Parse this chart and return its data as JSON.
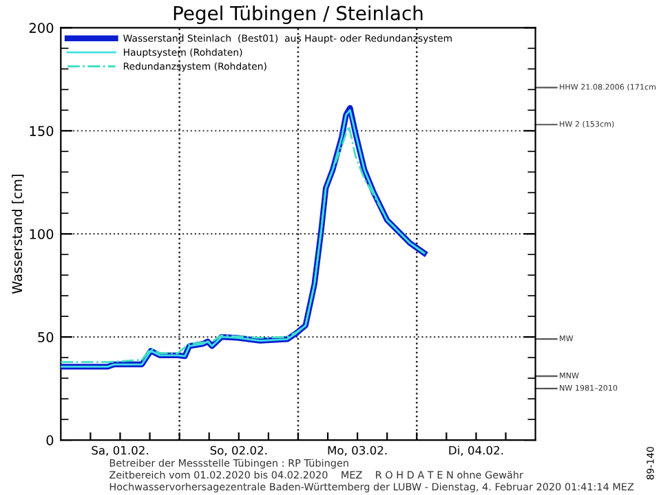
{
  "chart_data": {
    "type": "line",
    "title": "Pegel Tübingen / Steinlach",
    "ylabel": "Wasserstand [cm]",
    "xlim": [
      "2020-02-01T00:00",
      "2020-02-05T00:00"
    ],
    "ylim": [
      0,
      200
    ],
    "yticks": [
      0,
      50,
      100,
      150,
      200
    ],
    "xticks": [
      {
        "value": "2020-02-01T06:00",
        "label": null
      },
      {
        "value": "2020-02-01T12:00",
        "label": "Sa, 01.02."
      },
      {
        "value": "2020-02-01T18:00",
        "label": null
      },
      {
        "value": "2020-02-02T00:00",
        "label": null
      },
      {
        "value": "2020-02-02T06:00",
        "label": null
      },
      {
        "value": "2020-02-02T12:00",
        "label": "So, 02.02."
      },
      {
        "value": "2020-02-02T18:00",
        "label": null
      },
      {
        "value": "2020-02-03T00:00",
        "label": null
      },
      {
        "value": "2020-02-03T06:00",
        "label": null
      },
      {
        "value": "2020-02-03T12:00",
        "label": "Mo, 03.02."
      },
      {
        "value": "2020-02-03T18:00",
        "label": null
      },
      {
        "value": "2020-02-04T00:00",
        "label": null
      },
      {
        "value": "2020-02-04T06:00",
        "label": null
      },
      {
        "value": "2020-02-04T12:00",
        "label": "Di, 04.02."
      },
      {
        "value": "2020-02-04T18:00",
        "label": null
      }
    ],
    "grid": "y",
    "legend": "top left",
    "series": [
      {
        "name": "Wasserstand Steinlach  (Best01)  aus Haupt- oder Redundanzsystem",
        "color": "#0a1ed2",
        "line_style": "solid",
        "x": [
          "2020-02-01T00:00",
          "2020-02-01T09:30",
          "2020-02-01T10:48",
          "2020-02-01T16:24",
          "2020-02-01T18:12",
          "2020-02-01T20:00",
          "2020-02-01T23:42",
          "2020-02-02T01:06",
          "2020-02-02T02:00",
          "2020-02-02T04:48",
          "2020-02-02T05:42",
          "2020-02-02T06:36",
          "2020-02-02T08:30",
          "2020-02-02T11:42",
          "2020-02-02T16:18",
          "2020-02-02T21:48",
          "2020-02-02T23:36",
          "2020-02-03T01:30",
          "2020-02-03T03:18",
          "2020-02-03T04:42",
          "2020-02-03T05:36",
          "2020-02-03T07:00",
          "2020-02-03T08:48",
          "2020-02-03T09:42",
          "2020-02-03T10:30",
          "2020-02-03T11:36",
          "2020-02-03T12:30",
          "2020-02-03T13:24",
          "2020-02-03T15:18",
          "2020-02-03T18:00",
          "2020-02-03T22:36",
          "2020-02-04T01:30"
        ],
        "values": [
          35.6,
          35.6,
          36.7,
          36.7,
          43.3,
          41.1,
          41.1,
          40.7,
          45.6,
          46.7,
          47.8,
          45.6,
          50,
          49.6,
          48.2,
          48.9,
          51.8,
          55.6,
          75.6,
          102.2,
          122.2,
          131.1,
          146.7,
          157.8,
          161.1,
          148.9,
          140,
          131.1,
          120,
          106.7,
          95.6,
          90.7
        ]
      },
      {
        "name": "Hauptsystem (Rohdaten)",
        "color": "#40e0e0",
        "line_style": "solid",
        "x": [
          "2020-02-01T00:00",
          "2020-02-01T09:30",
          "2020-02-01T10:48",
          "2020-02-01T16:24",
          "2020-02-01T18:12",
          "2020-02-01T20:00",
          "2020-02-01T23:42",
          "2020-02-02T01:06",
          "2020-02-02T02:00",
          "2020-02-02T04:48",
          "2020-02-02T05:42",
          "2020-02-02T06:36",
          "2020-02-02T08:30",
          "2020-02-02T11:42",
          "2020-02-02T16:18",
          "2020-02-02T21:48",
          "2020-02-02T23:36",
          "2020-02-03T01:30",
          "2020-02-03T03:18",
          "2020-02-03T04:42",
          "2020-02-03T05:36",
          "2020-02-03T07:00",
          "2020-02-03T08:48",
          "2020-02-03T09:42",
          "2020-02-03T10:30",
          "2020-02-03T11:36",
          "2020-02-03T12:30",
          "2020-02-03T13:24",
          "2020-02-03T15:18",
          "2020-02-03T18:00",
          "2020-02-03T22:36",
          "2020-02-04T01:30"
        ],
        "values": [
          35.6,
          35.6,
          36.7,
          36.7,
          43.3,
          41.1,
          41.1,
          40.7,
          45.6,
          46.7,
          47.8,
          45.6,
          50,
          49.6,
          48.2,
          48.9,
          51.8,
          55.6,
          75.6,
          102.2,
          122.2,
          131.1,
          146.7,
          157.8,
          160,
          148.9,
          140,
          131.1,
          120,
          106.7,
          95.6,
          90.7
        ]
      },
      {
        "name": "Redundanzsystem (Rohdaten)",
        "color": "#40e0c0",
        "line_style": "dashdot",
        "x": [
          "2020-02-01T00:00",
          "2020-02-01T09:30",
          "2020-02-01T16:24",
          "2020-02-01T18:12",
          "2020-02-01T20:00",
          "2020-02-01T23:42",
          "2020-02-02T02:00",
          "2020-02-02T06:36",
          "2020-02-02T08:30",
          "2020-02-02T16:18",
          "2020-02-02T21:48",
          "2020-02-02T23:36",
          "2020-02-03T01:30",
          "2020-02-03T03:18",
          "2020-02-03T04:42",
          "2020-02-03T05:36",
          "2020-02-03T07:00",
          "2020-02-03T08:48",
          "2020-02-03T09:42",
          "2020-02-03T10:18",
          "2020-02-03T11:36",
          "2020-02-03T13:24",
          "2020-02-03T15:18",
          "2020-02-03T18:00",
          "2020-02-03T22:36",
          "2020-02-04T01:30"
        ],
        "values": [
          37.8,
          37.8,
          38.9,
          44.4,
          42.2,
          42.2,
          46.7,
          47.8,
          50.7,
          49.6,
          50,
          52.2,
          55.6,
          75.6,
          102.2,
          122.2,
          131.1,
          142.2,
          148.9,
          152.2,
          137.8,
          126.7,
          118.9,
          106.7,
          95.6,
          90.7
        ]
      }
    ],
    "ref_lines": [
      {
        "axis": "x",
        "value": "2020-02-02T00:00",
        "label": null,
        "line_style": "dotted"
      },
      {
        "axis": "x",
        "value": "2020-02-03T00:00",
        "label": null,
        "line_style": "dotted"
      },
      {
        "axis": "x",
        "value": "2020-02-04T00:00",
        "label": null,
        "line_style": "dotted"
      },
      {
        "axis": "y",
        "value": 171,
        "label": "HHW 21.08.2006 (171cm"
      },
      {
        "axis": "y",
        "value": 153,
        "label": "HW 2 (153cm)"
      },
      {
        "axis": "y",
        "value": 49,
        "label": "MW"
      },
      {
        "axis": "y",
        "value": 31,
        "label": "MNW"
      },
      {
        "axis": "y",
        "value": 25,
        "label": "NW 1981–2010"
      }
    ],
    "annotations": [
      "Betreiber der Messstelle Tübingen : RP Tübingen",
      "Zeitbereich vom 01.02.2020 bis 04.02.2020    MEZ    R O H D A T E N ohne Gewähr",
      "Hochwasservorhersagezentrale Baden-Württemberg der LUBW - Dienstag, 4. Februar 2020 01:41:14 MEZ",
      "89-140"
    ]
  }
}
